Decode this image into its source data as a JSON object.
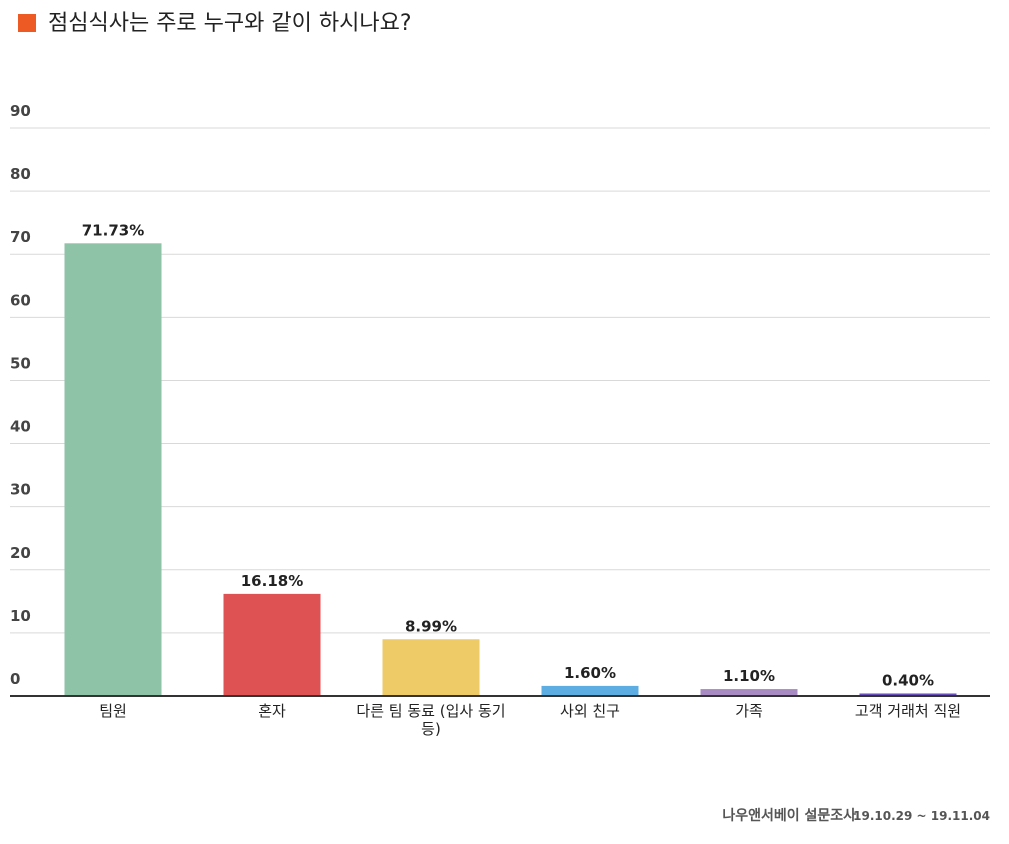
{
  "chart_data": {
    "type": "bar",
    "title": "점심식사는 주로 누구와 같이 하시나요?",
    "source": "나우앤서베이 설문조사",
    "period": "19.10.29 ~ 19.11.04",
    "categories": [
      "팀원",
      "혼자",
      "다른 팀 동료 (입사 동기 등)",
      "사외 친구",
      "가족",
      "고객 거래처 직원"
    ],
    "values": [
      71.73,
      16.18,
      8.99,
      1.6,
      1.1,
      0.4
    ],
    "value_labels": [
      "71.73%",
      "16.18%",
      "8.99%",
      "1.60%",
      "1.10%",
      "0.40%"
    ],
    "colors": [
      "#8ec3a7",
      "#de5254",
      "#eecb67",
      "#5dade2",
      "#a98bc3",
      "#6a4fc0"
    ],
    "ylim": [
      0,
      90
    ],
    "yticks": [
      0,
      10,
      20,
      30,
      40,
      50,
      60,
      70,
      80,
      90
    ],
    "grid": true
  }
}
